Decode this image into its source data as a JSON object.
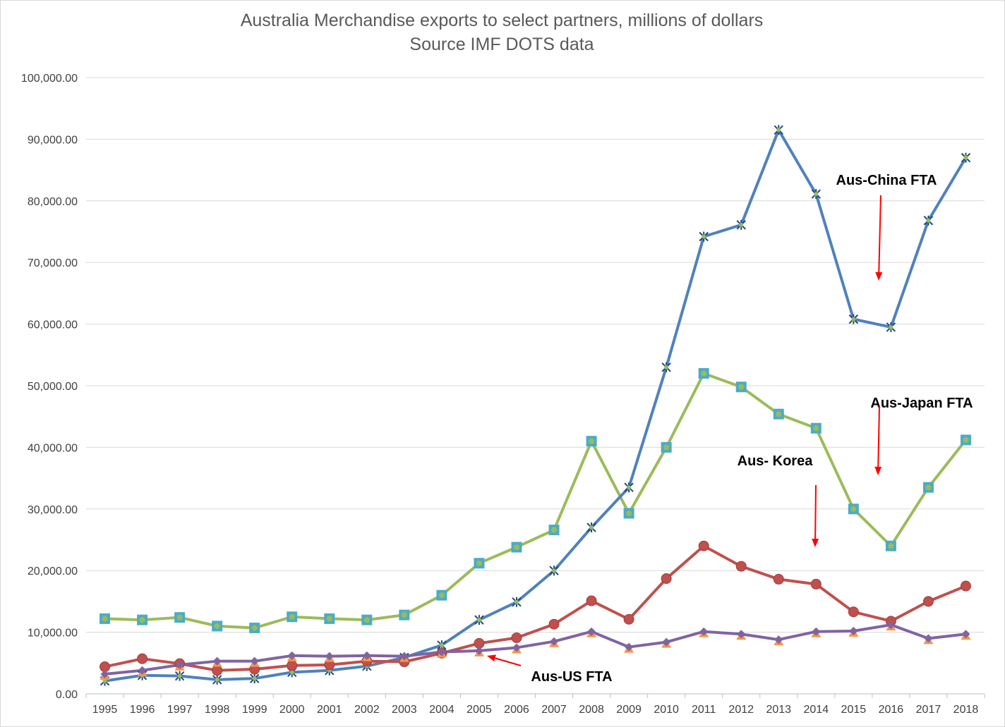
{
  "chart_data": {
    "type": "line",
    "title": "Australia Merchandise exports to select partners, millions of dollars",
    "subtitle": "Source IMF DOTS data",
    "xlabel": "",
    "ylabel": "",
    "ylim": [
      0,
      100000
    ],
    "grid": true,
    "legend": "none",
    "x": [
      "1995",
      "1996",
      "1997",
      "1998",
      "1999",
      "2000",
      "2001",
      "2002",
      "2003",
      "2004",
      "2005",
      "2006",
      "2007",
      "2008",
      "2009",
      "2010",
      "2011",
      "2012",
      "2013",
      "2014",
      "2015",
      "2016",
      "2017",
      "2018"
    ],
    "y_ticks": [
      "0.00",
      "10,000.00",
      "20,000.00",
      "30,000.00",
      "40,000.00",
      "50,000.00",
      "60,000.00",
      "70,000.00",
      "80,000.00",
      "90,000.00",
      "100,000.00"
    ],
    "series": [
      {
        "color": "#9BBB59",
        "marker": "square",
        "marker_color": "#4BACC6",
        "values": [
          12200,
          12000,
          12400,
          11000,
          10700,
          12500,
          12200,
          12000,
          12800,
          16000,
          21200,
          23800,
          26600,
          41000,
          29300,
          40000,
          52000,
          49800,
          45400,
          43100,
          30000,
          24000,
          33500,
          41200
        ]
      },
      {
        "color": "#4F81BD",
        "marker": "star",
        "marker_color": "#4F81BD",
        "values": [
          2100,
          3000,
          2900,
          2300,
          2500,
          3500,
          3800,
          4500,
          5900,
          7900,
          12000,
          14900,
          20000,
          27000,
          33500,
          53000,
          74200,
          76100,
          91500,
          81100,
          60800,
          59500,
          76800,
          87000
        ]
      },
      {
        "color": "#C0504D",
        "marker": "circle",
        "marker_color": "#C0504D",
        "values": [
          4400,
          5700,
          4900,
          3800,
          4000,
          4600,
          4700,
          5300,
          5200,
          6600,
          8200,
          9100,
          11300,
          15100,
          12100,
          18700,
          24000,
          20700,
          18600,
          17800,
          13300,
          11800,
          15000,
          17500
        ]
      },
      {
        "color": "#8064A2",
        "marker": "diamond",
        "marker_color": "#8064A2",
        "under_marker": "triangle",
        "under_marker_color": "#F79646",
        "values": [
          3200,
          3800,
          4700,
          5300,
          5300,
          6200,
          6100,
          6200,
          6100,
          6800,
          7000,
          7500,
          8500,
          10100,
          7600,
          8400,
          10100,
          9700,
          8800,
          10100,
          10200,
          11200,
          9000,
          9700
        ]
      }
    ],
    "annotations": [
      {
        "text": "Aus-China FTA",
        "arrow_color": "#FF0000"
      },
      {
        "text": "Aus-Japan FTA",
        "arrow_color": "#FF0000"
      },
      {
        "text": "Aus- Korea",
        "arrow_color": "#FF0000"
      },
      {
        "text": "Aus-US FTA",
        "arrow_color": "#FF0000"
      }
    ]
  }
}
